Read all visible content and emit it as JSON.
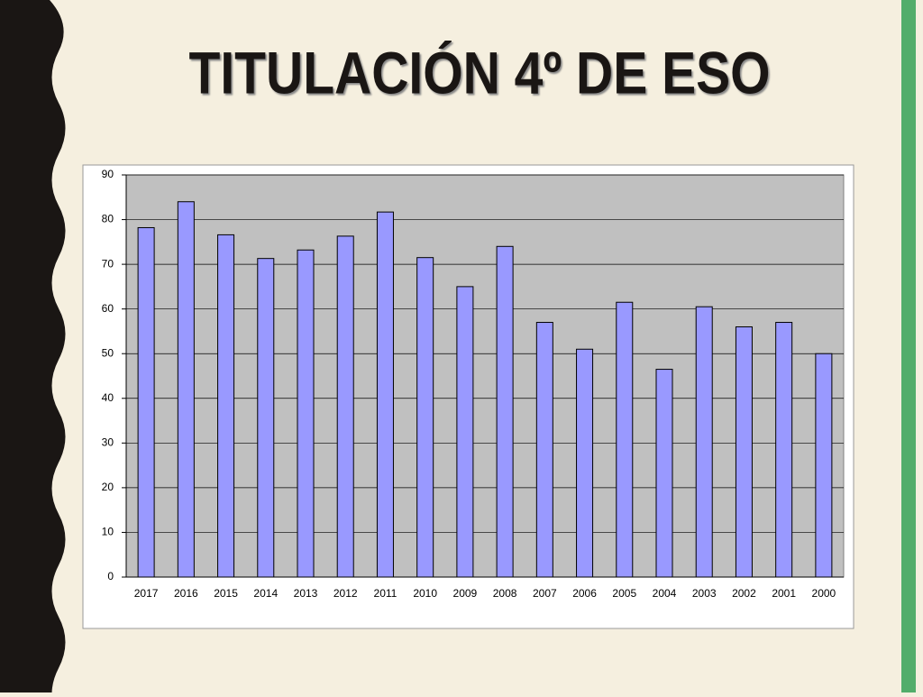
{
  "chart_data": {
    "type": "bar",
    "title": "TITULACIÓN 4º DE ESO",
    "categories": [
      "2017",
      "2016",
      "2015",
      "2014",
      "2013",
      "2012",
      "2011",
      "2010",
      "2009",
      "2008",
      "2007",
      "2006",
      "2005",
      "2004",
      "2003",
      "2002",
      "2001",
      "2000"
    ],
    "values": [
      78.2,
      84,
      76.6,
      71.3,
      73.2,
      76.3,
      81.7,
      71.5,
      65,
      74,
      57,
      51,
      61.5,
      46.5,
      60.5,
      56,
      57,
      50
    ],
    "color": "#9999ff",
    "ylim": [
      0,
      90
    ],
    "yticks": [
      0,
      10,
      20,
      30,
      40,
      50,
      60,
      70,
      80,
      90
    ],
    "grid": true
  }
}
